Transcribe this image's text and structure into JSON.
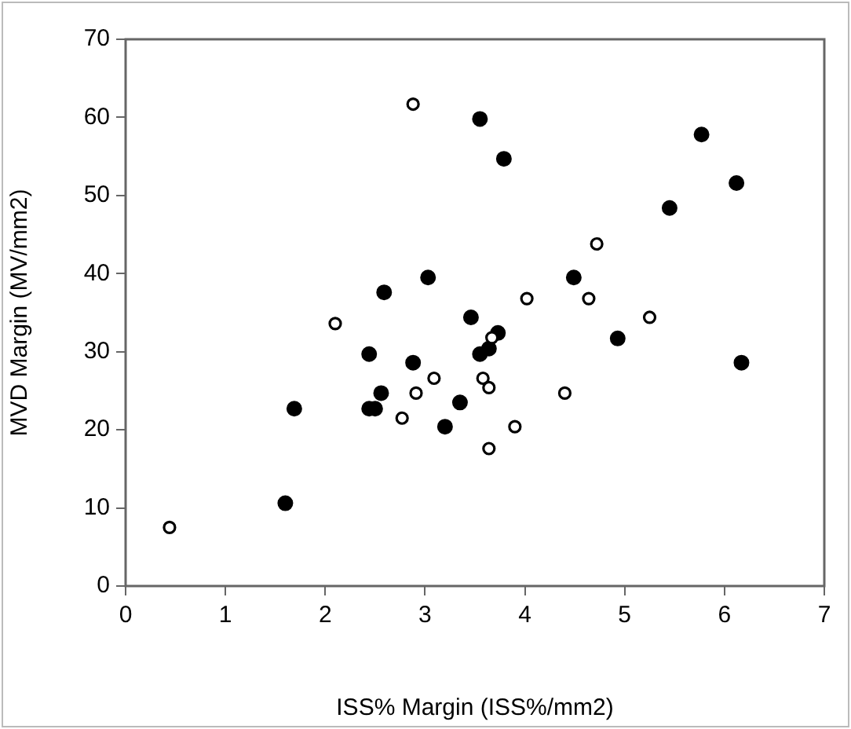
{
  "chart_data": {
    "type": "scatter",
    "xlabel": "ISS% Margin (ISS%/mm2)",
    "ylabel": "MVD Margin (MV/mm2)",
    "xlim": [
      0,
      7
    ],
    "xticks": [
      0,
      1,
      2,
      3,
      4,
      5,
      6,
      7
    ],
    "ylim": [
      0,
      70
    ],
    "yticks": [
      0,
      10,
      20,
      30,
      40,
      50,
      60,
      70
    ],
    "grid": false,
    "legend": false,
    "marker": "circle",
    "series": [
      {
        "color": "#000000",
        "x": [
          1.6,
          1.69,
          2.44,
          2.5,
          2.44,
          2.56,
          2.59,
          2.88,
          3.03,
          3.2,
          3.35,
          3.46,
          3.55,
          3.55,
          3.64,
          3.73,
          3.79,
          4.49,
          4.93,
          5.45,
          5.77,
          6.12,
          6.17
        ],
        "values": [
          10.6,
          22.7,
          22.7,
          22.7,
          29.7,
          24.7,
          37.6,
          28.6,
          39.5,
          20.4,
          23.5,
          34.4,
          29.7,
          59.8,
          30.4,
          32.4,
          54.7,
          39.5,
          31.7,
          48.4,
          57.8,
          51.6,
          28.6
        ]
      },
      {
        "color": "#ffffff",
        "x": [
          0.44,
          2.1,
          2.77,
          2.88,
          2.91,
          3.09,
          3.58,
          3.64,
          3.64,
          3.67,
          3.9,
          4.02,
          4.4,
          4.64,
          4.72,
          5.25
        ],
        "values": [
          7.5,
          33.6,
          21.5,
          61.7,
          24.7,
          26.6,
          26.6,
          17.6,
          25.4,
          31.8,
          20.4,
          36.8,
          24.7,
          36.8,
          43.8,
          34.4
        ]
      }
    ]
  }
}
